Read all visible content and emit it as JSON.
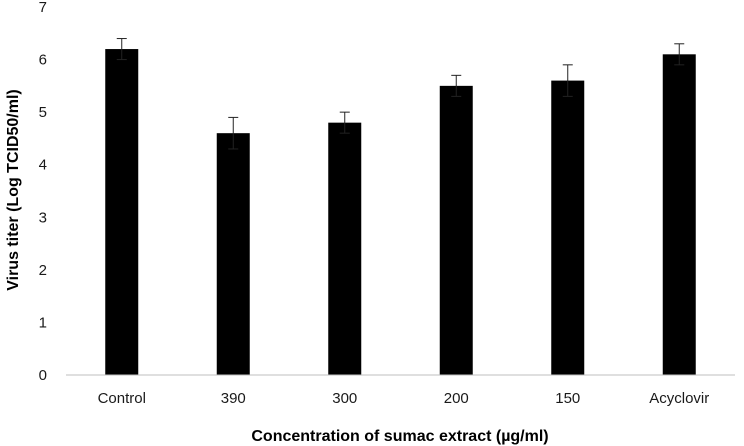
{
  "chart_data": {
    "type": "bar",
    "title": "",
    "xlabel": "Concentration of sumac extract (µg/ml)",
    "ylabel": "Virus titer (Log TCID50/ml)",
    "categories": [
      "Control",
      "390",
      "300",
      "200",
      "150",
      "Acyclovir"
    ],
    "values": [
      6.2,
      4.6,
      4.8,
      5.5,
      5.6,
      6.1
    ],
    "errors": [
      0.2,
      0.3,
      0.2,
      0.2,
      0.3,
      0.2
    ],
    "ylim": [
      0,
      7
    ],
    "yticks": [
      0,
      1,
      2,
      3,
      4,
      5,
      6,
      7
    ],
    "grid": false,
    "bar_color": "#000000"
  }
}
